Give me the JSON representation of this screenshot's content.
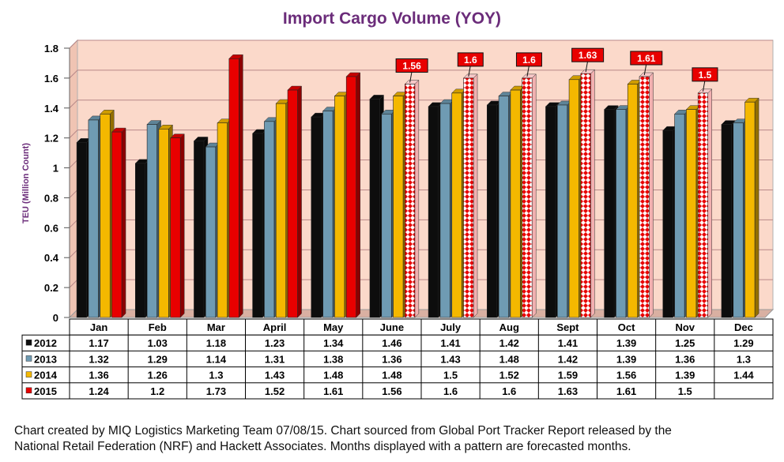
{
  "chart_data": {
    "type": "bar",
    "title": "Import Cargo Volume (YOY)",
    "ylabel": "TEU (Million Count)",
    "xlabel": "",
    "ylim": [
      0,
      1.8
    ],
    "yticks": [
      0,
      0.2,
      0.4,
      0.6,
      0.8,
      1,
      1.2,
      1.4,
      1.6,
      1.8
    ],
    "ytick_labels": [
      "0",
      "0.2",
      "0.4",
      "0.6",
      "0.8",
      "1",
      "1.2",
      "1.4",
      "1.6",
      "1.8"
    ],
    "categories": [
      "Jan",
      "Feb",
      "Mar",
      "April",
      "May",
      "June",
      "July",
      "Aug",
      "Sept",
      "Oct",
      "Nov",
      "Dec"
    ],
    "series": [
      {
        "name": "2012",
        "color": "#0d0d0d",
        "values": [
          1.17,
          1.03,
          1.18,
          1.23,
          1.34,
          1.46,
          1.41,
          1.42,
          1.41,
          1.39,
          1.25,
          1.29
        ],
        "labels": [
          "1.17",
          "1.03",
          "1.18",
          "1.23",
          "1.34",
          "1.46",
          "1.41",
          "1.42",
          "1.41",
          "1.39",
          "1.25",
          "1.29"
        ]
      },
      {
        "name": "2013",
        "color": "#6f9bb3",
        "values": [
          1.32,
          1.29,
          1.14,
          1.31,
          1.38,
          1.36,
          1.43,
          1.48,
          1.42,
          1.39,
          1.36,
          1.3
        ],
        "labels": [
          "1.32",
          "1.29",
          "1.14",
          "1.31",
          "1.38",
          "1.36",
          "1.43",
          "1.48",
          "1.42",
          "1.39",
          "1.36",
          "1.3"
        ]
      },
      {
        "name": "2014",
        "color": "#f4b800",
        "values": [
          1.36,
          1.26,
          1.3,
          1.43,
          1.48,
          1.48,
          1.5,
          1.52,
          1.59,
          1.56,
          1.39,
          1.44
        ],
        "labels": [
          "1.36",
          "1.26",
          "1.3",
          "1.43",
          "1.48",
          "1.48",
          "1.5",
          "1.52",
          "1.59",
          "1.56",
          "1.39",
          "1.44"
        ]
      },
      {
        "name": "2015",
        "color": "#e80000",
        "values": [
          1.24,
          1.2,
          1.73,
          1.52,
          1.61,
          1.56,
          1.6,
          1.6,
          1.63,
          1.61,
          1.5,
          null
        ],
        "labels": [
          "1.24",
          "1.2",
          "1.73",
          "1.52",
          "1.61",
          "1.56",
          "1.6",
          "1.6",
          "1.63",
          "1.61",
          "1.5",
          ""
        ],
        "forecast_start_index": 5
      }
    ],
    "grid": true,
    "legend": "data-table",
    "plot_background": "#fbd9ca",
    "gridline_color": "#b88888",
    "title_color": "#6b2c7a"
  },
  "footer": {
    "line1": "Chart created by MIQ Logistics Marketing Team 07/08/15. Chart sourced from Global Port Tracker Report released by the",
    "line2": "National Retail Federation (NRF) and Hackett Associates. Months displayed with a pattern are forecasted months."
  }
}
